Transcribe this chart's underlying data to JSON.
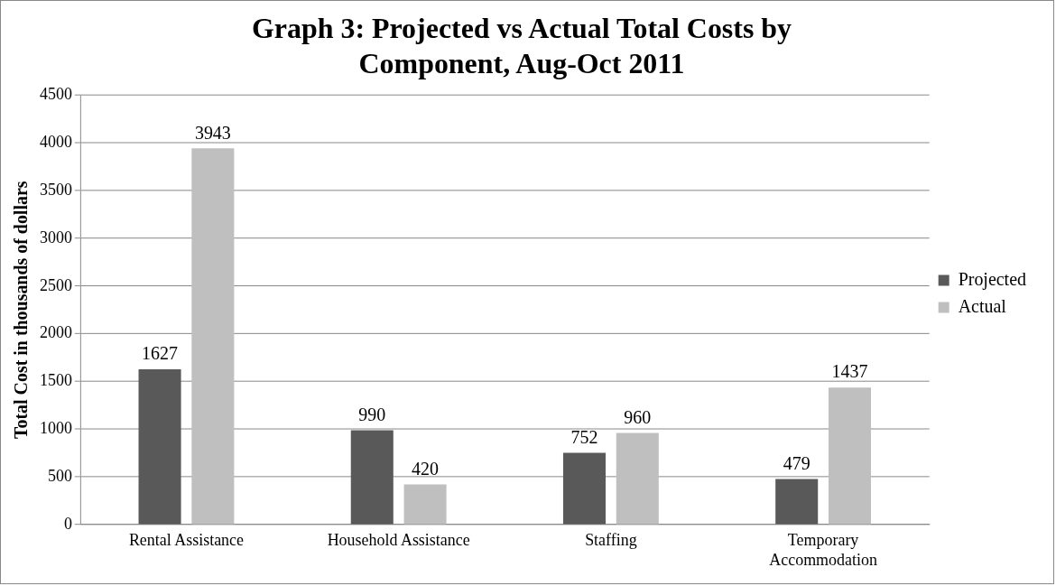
{
  "chart_data": {
    "type": "bar",
    "title": "Graph 3: Projected vs Actual Total Costs by Component, Aug-Oct 2011",
    "ylabel": "Total Cost in thousands of dollars",
    "categories": [
      "Rental Assistance",
      "Household Assistance",
      "Staffing",
      "Temporary Accommodation"
    ],
    "series": [
      {
        "name": "Projected",
        "color": "#595959",
        "values": [
          1627,
          990,
          752,
          479
        ]
      },
      {
        "name": "Actual",
        "color": "#bfbfbf",
        "values": [
          3943,
          420,
          960,
          1437
        ]
      }
    ],
    "ylim": [
      0,
      4500
    ],
    "yticks": [
      0,
      500,
      1000,
      1500,
      2000,
      2500,
      3000,
      3500,
      4000,
      4500
    ],
    "grid": "y",
    "legend": "right",
    "data_labels": true
  }
}
